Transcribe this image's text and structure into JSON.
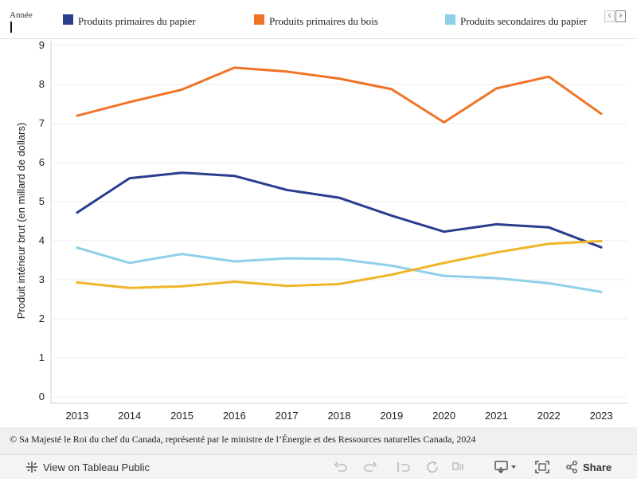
{
  "legend": {
    "title": "Année",
    "items": [
      {
        "label": "Produits primaires du papier",
        "color": "#2b3e8e"
      },
      {
        "label": "Produits primaires du bois",
        "color": "#f07427"
      },
      {
        "label": "Produits secondaires du papier",
        "color": "#8ecfea"
      }
    ],
    "nav_prev": "‹",
    "nav_next": "›"
  },
  "chart_data": {
    "type": "line",
    "title": "",
    "xlabel": "",
    "ylabel": "Produit intérieur brut (en millard de dollars)",
    "categories": [
      "2013",
      "2014",
      "2015",
      "2016",
      "2017",
      "2018",
      "2019",
      "2020",
      "2021",
      "2022",
      "2023"
    ],
    "ylim": [
      0,
      9
    ],
    "yticks": [
      0,
      1,
      2,
      3,
      4,
      5,
      6,
      7,
      8,
      9
    ],
    "grid": true,
    "series": [
      {
        "name": "Produits primaires du bois",
        "color": "#f07427",
        "values": [
          7.2,
          7.55,
          7.87,
          8.43,
          8.33,
          8.15,
          7.88,
          7.03,
          7.9,
          8.2,
          7.25
        ]
      },
      {
        "name": "Produits primaires du papier",
        "color": "#2b3e8e",
        "values": [
          4.72,
          5.6,
          5.74,
          5.66,
          5.3,
          5.1,
          4.64,
          4.23,
          4.42,
          4.34,
          3.83
        ]
      },
      {
        "name": "Produits secondaires du papier",
        "color": "#8ecfea",
        "values": [
          3.82,
          3.43,
          3.66,
          3.47,
          3.55,
          3.53,
          3.36,
          3.1,
          3.04,
          2.91,
          2.69
        ]
      },
      {
        "name": "Série non listée (jaune)",
        "color": "#f1b52a",
        "values": [
          2.93,
          2.79,
          2.83,
          2.95,
          2.84,
          2.89,
          3.13,
          3.43,
          3.7,
          3.92,
          3.99
        ]
      }
    ]
  },
  "footer": {
    "note": "© Sa Majesté le Roi du chef du Canada, représenté par le ministre de l’Énergie et des Ressources naturelles Canada, 2024"
  },
  "toolbar": {
    "view_label": "View on Tableau Public",
    "share_label": "Share"
  }
}
